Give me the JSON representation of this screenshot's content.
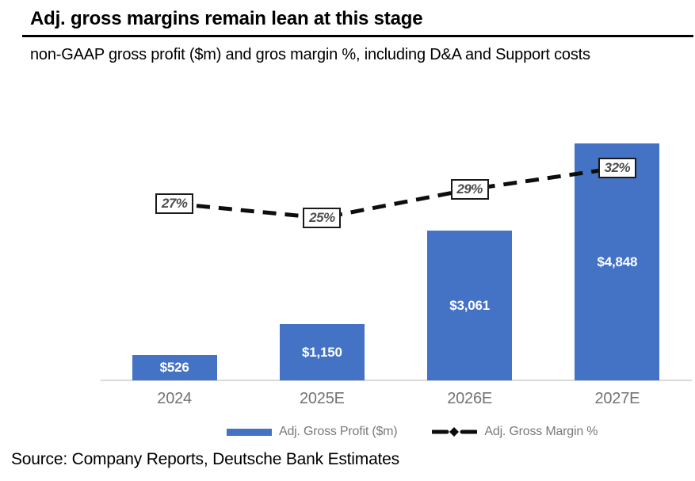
{
  "header": {
    "title": "Adj. gross margins remain lean at this stage",
    "subtitle": "non-GAAP gross profit ($m) and gros margin %, including D&A and Support costs"
  },
  "source_line": "Source: Company Reports, Deutsche Bank Estimates",
  "colors": {
    "bar_blue": "#4472C4",
    "line_black": "#0d0d0d",
    "axis_gray": "#d9d9d9",
    "tick_gray": "#737373",
    "legend_gray": "#7a7a7a",
    "margin_label_gray": "#4d4d4d"
  },
  "legend": {
    "items": [
      {
        "label": "Adj. Gross Profit ($m)"
      },
      {
        "label": "Adj. Gross Margin %"
      }
    ]
  },
  "chart_data": {
    "type": "bar",
    "subtype": "combo-bar-line",
    "title": "Adj. gross margins remain lean at this stage",
    "subtitle": "non-GAAP gross profit ($m) and gros margin %, including D&A and Support costs",
    "categories": [
      "2024",
      "2025E",
      "2026E",
      "2027E"
    ],
    "series": [
      {
        "name": "Adj. Gross Profit ($m)",
        "type": "bar",
        "axis": "left",
        "values": [
          526,
          1150,
          3061,
          4848
        ],
        "labels": [
          "$526",
          "$1,150",
          "$3,061",
          "$4,848"
        ],
        "color": "#4472C4"
      },
      {
        "name": "Adj. Gross Margin %",
        "type": "line",
        "axis": "right",
        "line_style": "dashed-black-with-diamond-markers",
        "values": [
          27,
          25,
          29,
          32
        ],
        "labels": [
          "27%",
          "25%",
          "29%",
          "32%"
        ]
      }
    ],
    "xlabel": "",
    "ylabel": "",
    "value_axes_hidden": true,
    "gridlines": false,
    "data_labels": "inside-bars-white and boxed-percent-on-line",
    "legend_position": "bottom"
  }
}
